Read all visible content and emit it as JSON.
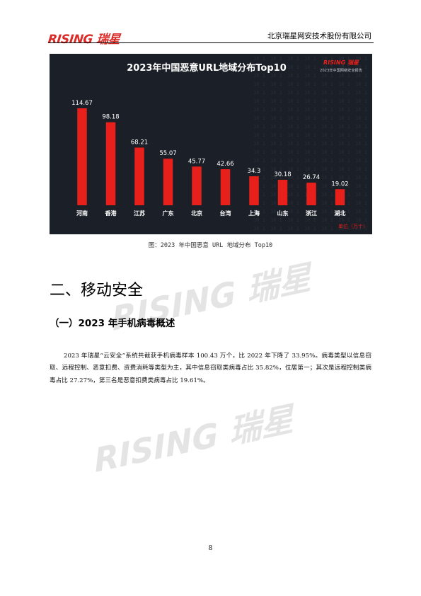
{
  "header": {
    "logo_text": "RISING 瑞星",
    "company": "北京瑞星网安技术股份有限公司"
  },
  "watermark": "RISING 瑞星",
  "figure": {
    "caption": "图：2023 年中国恶意 URL 地域分布 Top10",
    "subtitle_logo": "RISING 瑞星",
    "subtitle_text": "2023年中国网络安全报告",
    "colors": {
      "background": "#1b1f27",
      "bar": "#e8201b",
      "text": "#ffffff"
    }
  },
  "chart_data": {
    "type": "bar",
    "title": "2023年中国恶意URL地域分布Top10",
    "categories": [
      "河南",
      "香港",
      "江苏",
      "广东",
      "北京",
      "台湾",
      "上海",
      "山东",
      "浙江",
      "湖北"
    ],
    "values": [
      114.67,
      98.18,
      68.21,
      55.07,
      45.77,
      42.66,
      34.3,
      30.18,
      26.74,
      19.02
    ],
    "value_labels": [
      "114.67",
      "98.18",
      "68.21",
      "55.07",
      "45.77",
      "42.66",
      "34.3",
      "30.18",
      "26.74",
      "19.02"
    ],
    "unit": "单位（万个）",
    "ylim": [
      0,
      114.67
    ],
    "legend": "none",
    "grid": false
  },
  "section": {
    "title": "二、移动安全",
    "subsection_title": "（一）2023 年手机病毒概述",
    "paragraph": "2023 年瑞星“云安全”系统共截获手机病毒样本 100.43 万个，比 2022 年下降了 33.95%。病毒类型以信息窃取、远程控制、恶意扣费、资费消耗等类型为主，其中信息窃取类病毒占比 35.82%，位居第一；其次是远程控制类病毒占比 27.27%，第三名是恶意扣费类病毒占比 19.61%。"
  },
  "page_number": "8"
}
